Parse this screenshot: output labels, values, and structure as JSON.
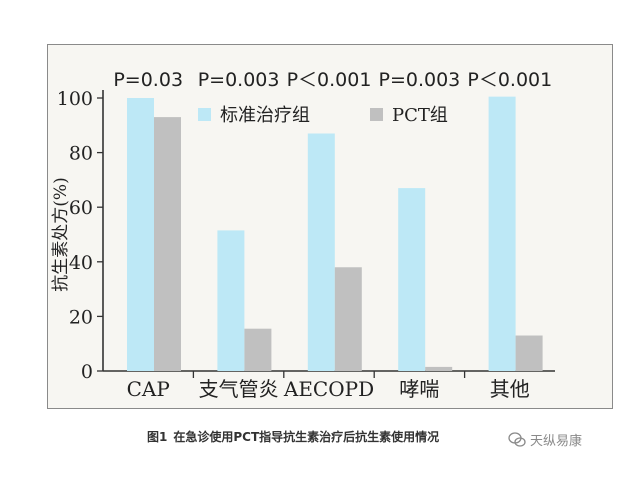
{
  "chart_data": {
    "type": "bar",
    "title": "",
    "xlabel": "",
    "ylabel": "抗生素处方(%)",
    "ylim": [
      0,
      100
    ],
    "yticks": [
      0,
      20,
      40,
      60,
      80,
      100
    ],
    "categories": [
      "CAP",
      "支气管炎",
      "AECOPD",
      "哮喘",
      "其他"
    ],
    "series": [
      {
        "name": "标准治疗组",
        "color": "#bde8f6",
        "values": [
          100,
          51.5,
          87,
          67,
          100.5
        ]
      },
      {
        "name": "PCT组",
        "color": "#c0c0c0",
        "values": [
          93,
          15.5,
          38,
          1.5,
          13
        ]
      }
    ],
    "annotations": [
      "P=0.03",
      "P=0.003",
      "P＜0.001",
      "P=0.003",
      "P＜0.001"
    ],
    "legend_position": "top-center",
    "grid": false
  },
  "caption": {
    "label": "图1",
    "text": "在急诊使用PCT指导抗生素治疗后抗生素使用情况"
  },
  "watermark": {
    "text": "天纵易康"
  }
}
